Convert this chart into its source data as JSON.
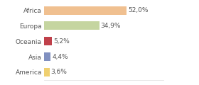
{
  "categories": [
    "Africa",
    "Europa",
    "Oceania",
    "Asia",
    "America"
  ],
  "values": [
    52.0,
    34.9,
    5.2,
    4.4,
    3.6
  ],
  "labels": [
    "52,0%",
    "34,9%",
    "5,2%",
    "4,4%",
    "3,6%"
  ],
  "colors": [
    "#f0c090",
    "#c5d5a0",
    "#c0404a",
    "#8090c0",
    "#f0d070"
  ],
  "background_color": "#ffffff",
  "label_fontsize": 6.5,
  "tick_fontsize": 6.5,
  "bar_height": 0.55,
  "xlim": 75
}
